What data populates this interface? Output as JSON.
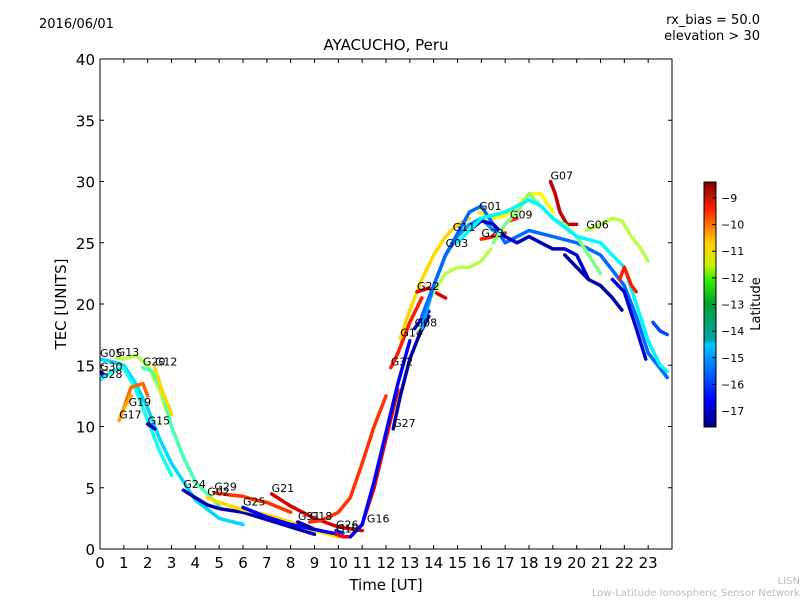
{
  "header": {
    "date": "2016/06/01",
    "rx_bias": "rx_bias = 50.0",
    "elevation": "elevation > 30"
  },
  "footer": {
    "network_short": "LISN",
    "network_full": "Low-Latitude Ionospheric Sensor Network"
  },
  "chart_data": {
    "type": "line",
    "title": "AYACUCHO, Peru",
    "xlabel": "Time [UT]",
    "ylabel": "TEC [UNITS]",
    "xlim": [
      0,
      24
    ],
    "ylim": [
      0,
      40
    ],
    "xticks": [
      "0",
      "1",
      "2",
      "3",
      "4",
      "5",
      "6",
      "7",
      "8",
      "9",
      "10",
      "11",
      "12",
      "13",
      "14",
      "15",
      "16",
      "17",
      "18",
      "19",
      "20",
      "21",
      "22",
      "23"
    ],
    "yticks": [
      "0",
      "5",
      "10",
      "15",
      "20",
      "25",
      "30",
      "35",
      "40"
    ],
    "grid": false,
    "colorbar": {
      "label": "Latitude",
      "range": [
        -17.6,
        -8.4
      ],
      "ticks": [
        "-9",
        "-10",
        "-11",
        "-12",
        "-13",
        "-14",
        "-15",
        "-16",
        "-17"
      ],
      "colormap": "jet"
    },
    "series": [
      {
        "name": "G05",
        "label_at": [
          0.0,
          15.5
        ],
        "lat": -14.5,
        "x": [
          0.0,
          0.5,
          1.0,
          1.5,
          2.0,
          2.5,
          3.0,
          3.5,
          4.0,
          5.0,
          6.0
        ],
        "y": [
          15.5,
          15.3,
          15.0,
          13.5,
          11.5,
          9.0,
          7.0,
          5.5,
          4.0,
          2.5,
          2.0
        ]
      },
      {
        "name": "G13",
        "label_at": [
          0.7,
          15.6
        ],
        "lat": -12.5,
        "x": [
          0.7,
          1.0,
          1.5,
          2.0,
          2.5,
          3.0,
          3.5,
          4.0
        ],
        "y": [
          15.6,
          15.5,
          15.8,
          15.0,
          13.0,
          10.0,
          7.5,
          5.5
        ]
      },
      {
        "name": "G30",
        "label_at": [
          0.0,
          14.4
        ],
        "lat": -17.0,
        "x": [
          0.0,
          0.2
        ],
        "y": [
          14.5,
          14.2
        ]
      },
      {
        "name": "G28",
        "label_at": [
          0.0,
          13.8
        ],
        "lat": -14.0,
        "x": [
          0.0,
          0.5,
          1.0,
          1.5,
          2.0,
          2.5,
          3.0
        ],
        "y": [
          13.8,
          14.5,
          14.8,
          13.0,
          10.5,
          8.0,
          6.0
        ]
      },
      {
        "name": "G20",
        "label_at": [
          1.8,
          14.8
        ],
        "lat": -13.5,
        "x": [
          1.8,
          2.2,
          2.6,
          3.0,
          3.5,
          4.0,
          5.0
        ],
        "y": [
          14.8,
          14.5,
          13.0,
          10.0,
          7.5,
          5.5,
          3.5
        ]
      },
      {
        "name": "G12",
        "label_at": [
          2.3,
          14.8
        ],
        "lat": -11.5,
        "x": [
          2.3,
          2.6,
          2.8,
          3.0
        ],
        "y": [
          14.8,
          13.0,
          12.0,
          11.0
        ]
      },
      {
        "name": "G19",
        "label_at": [
          1.2,
          11.5
        ],
        "lat": -10.5,
        "x": [
          1.0,
          1.3,
          1.8,
          2.0
        ],
        "y": [
          11.5,
          13.2,
          13.5,
          12.5
        ]
      },
      {
        "name": "G17",
        "label_at": [
          0.8,
          10.5
        ],
        "lat": -11.0,
        "x": [
          0.8,
          1.0,
          1.3
        ],
        "y": [
          10.5,
          11.5,
          12.5
        ]
      },
      {
        "name": "G15",
        "label_at": [
          2.0,
          10.0
        ],
        "lat": -17.0,
        "x": [
          2.0,
          2.3
        ],
        "y": [
          10.2,
          9.8
        ]
      },
      {
        "name": "G24",
        "label_at": [
          3.5,
          4.8
        ],
        "lat": -17.2,
        "x": [
          3.5,
          4.0,
          4.5,
          5.0,
          6.0,
          7.0,
          8.0,
          9.0
        ],
        "y": [
          4.8,
          4.2,
          3.6,
          3.3,
          3.0,
          2.4,
          1.8,
          1.2
        ]
      },
      {
        "name": "G29",
        "label_at": [
          4.8,
          4.6
        ],
        "lat": -10.0,
        "x": [
          4.8,
          5.5,
          6.0,
          6.5,
          7.0,
          8.0
        ],
        "y": [
          4.6,
          4.4,
          4.3,
          4.0,
          3.8,
          3.0
        ]
      },
      {
        "name": "G02",
        "label_at": [
          4.5,
          4.2
        ],
        "lat": -11.5,
        "x": [
          4.5,
          5.0,
          6.0,
          7.0,
          8.0,
          9.0,
          10.0
        ],
        "y": [
          4.2,
          3.8,
          3.2,
          2.8,
          2.2,
          1.5,
          1.0
        ]
      },
      {
        "name": "G25",
        "label_at": [
          6.0,
          3.4
        ],
        "lat": -16.5,
        "x": [
          6.0,
          6.5,
          7.0,
          8.0,
          9.0,
          10.0
        ],
        "y": [
          3.4,
          3.0,
          2.6,
          2.0,
          1.6,
          1.2
        ]
      },
      {
        "name": "G21",
        "label_at": [
          7.2,
          4.5
        ],
        "lat": -9.2,
        "x": [
          7.2,
          7.6,
          8.0,
          9.0,
          10.0,
          11.0
        ],
        "y": [
          4.5,
          4.0,
          3.5,
          2.5,
          1.8,
          1.5
        ]
      },
      {
        "name": "G31",
        "label_at": [
          8.3,
          2.2
        ],
        "lat": -17.2,
        "x": [
          8.3,
          8.8,
          9.0
        ],
        "y": [
          2.2,
          1.8,
          1.6
        ]
      },
      {
        "name": "G18",
        "label_at": [
          8.8,
          2.2
        ],
        "lat": -10.0,
        "x": [
          8.8,
          9.2,
          9.6,
          10.0,
          10.5,
          11.0,
          11.5,
          12.0
        ],
        "y": [
          2.2,
          2.3,
          2.6,
          3.0,
          4.2,
          7.0,
          10.0,
          12.5
        ]
      },
      {
        "name": "G26",
        "label_at": [
          9.9,
          1.5
        ],
        "lat": -16.0,
        "x": [
          9.9,
          10.2
        ],
        "y": [
          1.5,
          1.3
        ]
      },
      {
        "name": "G10",
        "label_at": [
          9.9,
          1.2
        ],
        "lat": -9.5,
        "x": [
          9.9,
          10.2,
          10.5,
          11.0,
          11.5,
          12.0,
          12.5
        ],
        "y": [
          1.2,
          1.0,
          1.0,
          2.0,
          5.0,
          9.0,
          13.0
        ]
      },
      {
        "name": "G16",
        "label_at": [
          11.2,
          2.0
        ],
        "lat": -16.5,
        "x": [
          10.5,
          11.0,
          11.5,
          12.0,
          12.5,
          13.0
        ],
        "y": [
          1.0,
          2.0,
          5.5,
          9.5,
          13.5,
          17.0
        ]
      },
      {
        "name": "G27",
        "label_at": [
          12.3,
          9.8
        ],
        "lat": -17.3,
        "x": [
          12.3,
          12.6,
          13.0,
          13.4,
          13.8
        ],
        "y": [
          9.8,
          12.5,
          15.5,
          17.5,
          19.0
        ]
      },
      {
        "name": "G32",
        "label_at": [
          12.2,
          14.8
        ],
        "lat": -9.8,
        "x": [
          12.2,
          12.5,
          13.0,
          13.5
        ],
        "y": [
          14.8,
          16.0,
          18.5,
          20.5
        ]
      },
      {
        "name": "G14",
        "label_at": [
          12.6,
          17.2
        ],
        "lat": -11.5,
        "x": [
          12.6,
          13.0,
          13.5,
          14.0,
          14.5,
          15.0,
          15.5
        ],
        "y": [
          17.2,
          19.5,
          22.0,
          24.0,
          25.5,
          26.5,
          27.0
        ]
      },
      {
        "name": "G08",
        "label_at": [
          13.2,
          18.0
        ],
        "lat": -17.0,
        "x": [
          13.2,
          13.5,
          13.8
        ],
        "y": [
          18.0,
          18.8,
          19.4
        ]
      },
      {
        "name": "G22",
        "label_at": [
          13.3,
          21.0
        ],
        "lat": -9.3,
        "x": [
          13.3,
          13.8,
          14.2,
          14.5
        ],
        "y": [
          21.0,
          21.3,
          20.8,
          20.5
        ]
      },
      {
        "name": "G03",
        "label_at": [
          14.5,
          24.5
        ],
        "lat": -12.5,
        "x": [
          13.5,
          14.0,
          14.5,
          15.0,
          15.5,
          16.0,
          16.4
        ],
        "y": [
          19.0,
          21.0,
          22.5,
          23.0,
          23.0,
          23.5,
          24.5
        ]
      },
      {
        "name": "G11",
        "label_at": [
          14.8,
          25.8
        ],
        "lat": -15.0,
        "x": [
          13.5,
          14.0,
          14.5,
          15.0,
          15.5,
          16.0,
          16.5,
          17.0
        ],
        "y": [
          18.0,
          21.5,
          24.0,
          25.5,
          26.5,
          27.0,
          26.0,
          25.5
        ]
      },
      {
        "name": "G01",
        "label_at": [
          15.9,
          27.5
        ],
        "lat": -11.8,
        "x": [
          15.9,
          16.5,
          17.0,
          17.5,
          18.0,
          18.5,
          19.0
        ],
        "y": [
          27.5,
          27.0,
          27.2,
          28.0,
          29.0,
          29.0,
          27.5
        ]
      },
      {
        "name": "G23",
        "label_at": [
          16.0,
          25.3
        ],
        "lat": -9.8,
        "x": [
          16.0,
          16.5,
          17.0
        ],
        "y": [
          25.3,
          25.5,
          25.8
        ]
      },
      {
        "name": "G09",
        "label_at": [
          17.2,
          26.8
        ],
        "lat": -10.0,
        "x": [
          17.2,
          17.5
        ],
        "y": [
          26.8,
          27.0
        ]
      },
      {
        "name": "G07",
        "label_at": [
          18.9,
          30.0
        ],
        "lat": -9.0,
        "x": [
          18.9,
          19.1,
          19.3,
          19.6,
          20.0
        ],
        "y": [
          30.0,
          29.0,
          27.5,
          26.5,
          26.5
        ]
      },
      {
        "name": "G06",
        "label_at": [
          20.4,
          26.0
        ],
        "lat": -12.5,
        "x": [
          20.4,
          21.0,
          21.5,
          21.9,
          22.3,
          22.7,
          23.0
        ],
        "y": [
          26.0,
          26.5,
          27.0,
          26.8,
          25.5,
          24.5,
          23.5
        ]
      },
      {
        "name": "trail-cyan-main",
        "label_at": null,
        "lat": -15.5,
        "x": [
          13.5,
          14.5,
          15.5,
          16.0,
          16.5,
          17.0,
          17.5,
          18.0,
          19.0,
          20.0,
          21.0,
          22.0,
          22.5,
          23.0,
          23.8
        ],
        "y": [
          19.0,
          24.0,
          27.5,
          28.0,
          26.5,
          25.0,
          25.5,
          26.0,
          25.5,
          25.0,
          24.0,
          21.5,
          19.0,
          16.0,
          14.0
        ]
      },
      {
        "name": "trail-blue-main",
        "label_at": null,
        "lat": -17.0,
        "x": [
          15.5,
          16.0,
          16.5,
          17.0,
          17.5,
          18.0,
          18.5,
          19.0,
          19.5,
          20.0,
          20.5
        ],
        "y": [
          26.0,
          26.8,
          26.5,
          25.5,
          25.0,
          25.5,
          25.0,
          24.5,
          24.5,
          24.0,
          22.0
        ]
      },
      {
        "name": "trail-green-main",
        "label_at": null,
        "lat": -13.0,
        "x": [
          16.5,
          17.0,
          17.5,
          18.0,
          18.5,
          19.0,
          19.5,
          20.0,
          20.5,
          21.0
        ],
        "y": [
          25.0,
          26.5,
          27.5,
          29.0,
          28.0,
          27.0,
          26.5,
          25.5,
          24.0,
          22.5
        ]
      },
      {
        "name": "trail-dkgreen-main",
        "label_at": null,
        "lat": -14.2,
        "x": [
          15.0,
          16.0,
          17.0,
          18.0,
          18.5,
          19.0,
          20.0,
          21.0,
          22.0,
          22.5,
          23.0,
          23.5,
          23.8
        ],
        "y": [
          25.0,
          27.0,
          27.5,
          28.5,
          28.0,
          27.0,
          25.5,
          25.0,
          23.0,
          20.0,
          17.0,
          15.0,
          14.5
        ]
      },
      {
        "name": "trail-blue-late",
        "label_at": null,
        "lat": -17.2,
        "x": [
          19.5,
          20.0,
          20.5,
          21.0,
          21.5,
          21.9
        ],
        "y": [
          24.0,
          23.0,
          22.0,
          21.5,
          20.5,
          19.5
        ]
      },
      {
        "name": "trail-blue-end",
        "label_at": null,
        "lat": -16.8,
        "x": [
          21.5,
          22.0,
          22.5,
          22.9
        ],
        "y": [
          22.0,
          21.0,
          18.0,
          15.5
        ]
      },
      {
        "name": "trail-red-late",
        "label_at": null,
        "lat": -9.8,
        "x": [
          21.8,
          22.0,
          22.3,
          22.5
        ],
        "y": [
          22.0,
          23.0,
          21.5,
          21.0
        ]
      },
      {
        "name": "trail-cyan-end",
        "label_at": null,
        "lat": -15.8,
        "x": [
          23.2,
          23.5,
          23.8
        ],
        "y": [
          18.5,
          17.8,
          17.5
        ]
      }
    ]
  }
}
